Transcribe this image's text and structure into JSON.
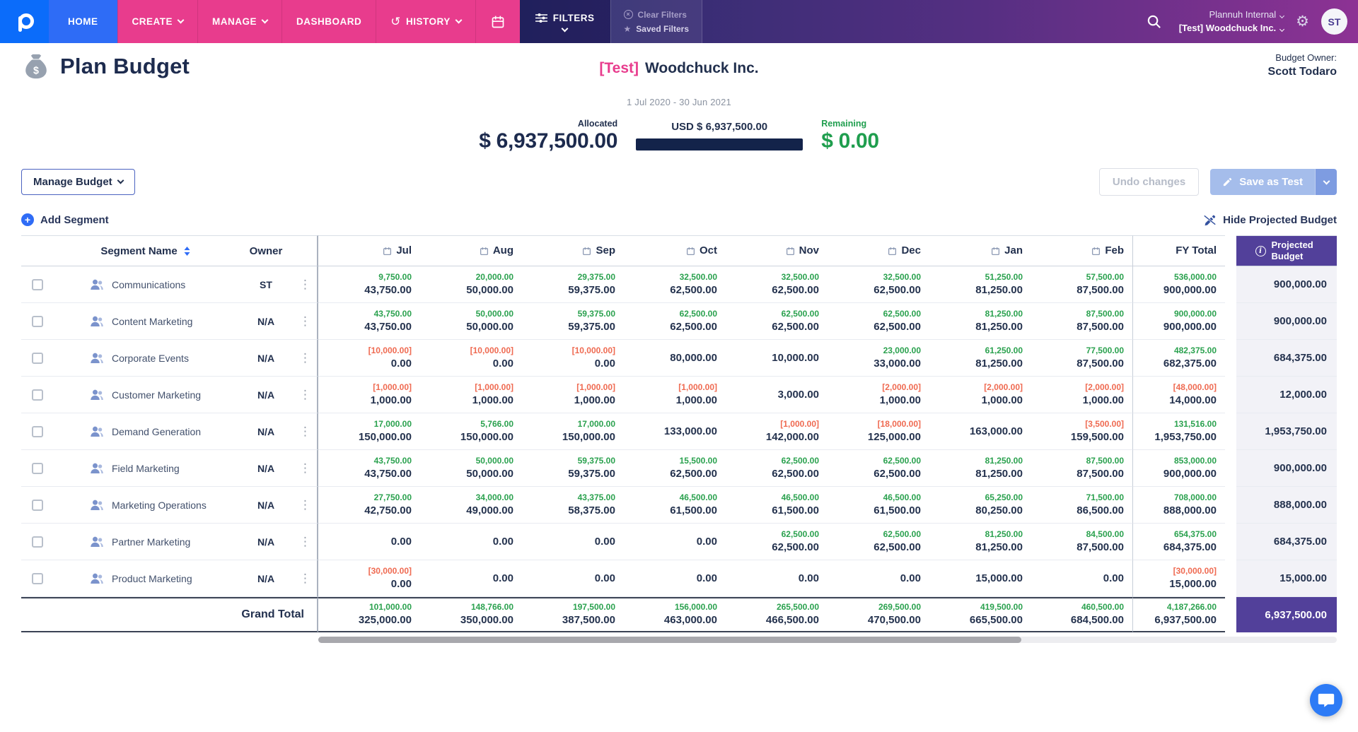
{
  "nav": {
    "home": "HOME",
    "create": "CREATE",
    "manage": "MANAGE",
    "dashboard": "DASHBOARD",
    "history": "HISTORY",
    "filters": "FILTERS",
    "clear_filters": "Clear Filters",
    "saved_filters": "Saved Filters",
    "org_primary": "Plannuh Internal",
    "org_secondary": "[Test] Woodchuck Inc.",
    "avatar_initials": "ST"
  },
  "header": {
    "page_title": "Plan Budget",
    "company_tag": "[Test]",
    "company_name": "Woodchuck Inc.",
    "budget_owner_label": "Budget Owner:",
    "budget_owner_name": "Scott Todaro",
    "date_range": "1 Jul 2020 - 30 Jun 2021",
    "allocated_label": "Allocated",
    "allocated_value": "$ 6,937,500.00",
    "usd_total_label": "USD $ 6,937,500.00",
    "remaining_label": "Remaining",
    "remaining_value": "$ 0.00"
  },
  "toolbar": {
    "manage_budget_label": "Manage Budget",
    "undo_label": "Undo changes",
    "save_label": "Save as Test",
    "add_segment_label": "Add Segment",
    "hide_projected_label": "Hide Projected Budget"
  },
  "table": {
    "segment_name_label": "Segment Name",
    "owner_label": "Owner",
    "months": [
      "Jul",
      "Aug",
      "Sep",
      "Oct",
      "Nov",
      "Dec",
      "Jan",
      "Feb"
    ],
    "fy_total_label": "FY Total",
    "projected_label": "Projected Budget",
    "grand_total_label": "Grand Total",
    "rows": [
      {
        "name": "Communications",
        "owner": "ST",
        "months": [
          {
            "delta": "9,750.00",
            "type": "pos",
            "value": "43,750.00"
          },
          {
            "delta": "20,000.00",
            "type": "pos",
            "value": "50,000.00"
          },
          {
            "delta": "29,375.00",
            "type": "pos",
            "value": "59,375.00"
          },
          {
            "delta": "32,500.00",
            "type": "pos",
            "value": "62,500.00"
          },
          {
            "delta": "32,500.00",
            "type": "pos",
            "value": "62,500.00"
          },
          {
            "delta": "32,500.00",
            "type": "pos",
            "value": "62,500.00"
          },
          {
            "delta": "51,250.00",
            "type": "pos",
            "value": "81,250.00"
          },
          {
            "delta": "57,500.00",
            "type": "pos",
            "value": "87,500.00"
          }
        ],
        "fy": {
          "delta": "536,000.00",
          "type": "pos",
          "value": "900,000.00"
        },
        "projected": "900,000.00"
      },
      {
        "name": "Content Marketing",
        "owner": "N/A",
        "months": [
          {
            "delta": "43,750.00",
            "type": "pos",
            "value": "43,750.00"
          },
          {
            "delta": "50,000.00",
            "type": "pos",
            "value": "50,000.00"
          },
          {
            "delta": "59,375.00",
            "type": "pos",
            "value": "59,375.00"
          },
          {
            "delta": "62,500.00",
            "type": "pos",
            "value": "62,500.00"
          },
          {
            "delta": "62,500.00",
            "type": "pos",
            "value": "62,500.00"
          },
          {
            "delta": "62,500.00",
            "type": "pos",
            "value": "62,500.00"
          },
          {
            "delta": "81,250.00",
            "type": "pos",
            "value": "81,250.00"
          },
          {
            "delta": "87,500.00",
            "type": "pos",
            "value": "87,500.00"
          }
        ],
        "fy": {
          "delta": "900,000.00",
          "type": "pos",
          "value": "900,000.00"
        },
        "projected": "900,000.00"
      },
      {
        "name": "Corporate Events",
        "owner": "N/A",
        "months": [
          {
            "delta": "[10,000.00]",
            "type": "neg",
            "value": "0.00"
          },
          {
            "delta": "[10,000.00]",
            "type": "neg",
            "value": "0.00"
          },
          {
            "delta": "[10,000.00]",
            "type": "neg",
            "value": "0.00"
          },
          {
            "value": "80,000.00"
          },
          {
            "value": "10,000.00"
          },
          {
            "delta": "23,000.00",
            "type": "pos",
            "value": "33,000.00"
          },
          {
            "delta": "61,250.00",
            "type": "pos",
            "value": "81,250.00"
          },
          {
            "delta": "77,500.00",
            "type": "pos",
            "value": "87,500.00"
          }
        ],
        "fy": {
          "delta": "482,375.00",
          "type": "pos",
          "value": "682,375.00"
        },
        "projected": "684,375.00"
      },
      {
        "name": "Customer Marketing",
        "owner": "N/A",
        "months": [
          {
            "delta": "[1,000.00]",
            "type": "neg",
            "value": "1,000.00"
          },
          {
            "delta": "[1,000.00]",
            "type": "neg",
            "value": "1,000.00"
          },
          {
            "delta": "[1,000.00]",
            "type": "neg",
            "value": "1,000.00"
          },
          {
            "delta": "[1,000.00]",
            "type": "neg",
            "value": "1,000.00"
          },
          {
            "value": "3,000.00"
          },
          {
            "delta": "[2,000.00]",
            "type": "neg",
            "value": "1,000.00"
          },
          {
            "delta": "[2,000.00]",
            "type": "neg",
            "value": "1,000.00"
          },
          {
            "delta": "[2,000.00]",
            "type": "neg",
            "value": "1,000.00"
          }
        ],
        "fy": {
          "delta": "[48,000.00]",
          "type": "neg",
          "value": "14,000.00"
        },
        "projected": "12,000.00"
      },
      {
        "name": "Demand Generation",
        "owner": "N/A",
        "months": [
          {
            "delta": "17,000.00",
            "type": "pos",
            "value": "150,000.00"
          },
          {
            "delta": "5,766.00",
            "type": "pos",
            "value": "150,000.00"
          },
          {
            "delta": "17,000.00",
            "type": "pos",
            "value": "150,000.00"
          },
          {
            "value": "133,000.00"
          },
          {
            "delta": "[1,000.00]",
            "type": "neg",
            "value": "142,000.00"
          },
          {
            "delta": "[18,000.00]",
            "type": "neg",
            "value": "125,000.00"
          },
          {
            "value": "163,000.00"
          },
          {
            "delta": "[3,500.00]",
            "type": "neg",
            "value": "159,500.00"
          }
        ],
        "fy": {
          "delta": "131,516.00",
          "type": "pos",
          "value": "1,953,750.00"
        },
        "projected": "1,953,750.00"
      },
      {
        "name": "Field Marketing",
        "owner": "N/A",
        "months": [
          {
            "delta": "43,750.00",
            "type": "pos",
            "value": "43,750.00"
          },
          {
            "delta": "50,000.00",
            "type": "pos",
            "value": "50,000.00"
          },
          {
            "delta": "59,375.00",
            "type": "pos",
            "value": "59,375.00"
          },
          {
            "delta": "15,500.00",
            "type": "pos",
            "value": "62,500.00"
          },
          {
            "delta": "62,500.00",
            "type": "pos",
            "value": "62,500.00"
          },
          {
            "delta": "62,500.00",
            "type": "pos",
            "value": "62,500.00"
          },
          {
            "delta": "81,250.00",
            "type": "pos",
            "value": "81,250.00"
          },
          {
            "delta": "87,500.00",
            "type": "pos",
            "value": "87,500.00"
          }
        ],
        "fy": {
          "delta": "853,000.00",
          "type": "pos",
          "value": "900,000.00"
        },
        "projected": "900,000.00"
      },
      {
        "name": "Marketing Operations",
        "owner": "N/A",
        "months": [
          {
            "delta": "27,750.00",
            "type": "pos",
            "value": "42,750.00"
          },
          {
            "delta": "34,000.00",
            "type": "pos",
            "value": "49,000.00"
          },
          {
            "delta": "43,375.00",
            "type": "pos",
            "value": "58,375.00"
          },
          {
            "delta": "46,500.00",
            "type": "pos",
            "value": "61,500.00"
          },
          {
            "delta": "46,500.00",
            "type": "pos",
            "value": "61,500.00"
          },
          {
            "delta": "46,500.00",
            "type": "pos",
            "value": "61,500.00"
          },
          {
            "delta": "65,250.00",
            "type": "pos",
            "value": "80,250.00"
          },
          {
            "delta": "71,500.00",
            "type": "pos",
            "value": "86,500.00"
          }
        ],
        "fy": {
          "delta": "708,000.00",
          "type": "pos",
          "value": "888,000.00"
        },
        "projected": "888,000.00"
      },
      {
        "name": "Partner Marketing",
        "owner": "N/A",
        "months": [
          {
            "value": "0.00"
          },
          {
            "value": "0.00"
          },
          {
            "value": "0.00"
          },
          {
            "value": "0.00"
          },
          {
            "delta": "62,500.00",
            "type": "pos",
            "value": "62,500.00"
          },
          {
            "delta": "62,500.00",
            "type": "pos",
            "value": "62,500.00"
          },
          {
            "delta": "81,250.00",
            "type": "pos",
            "value": "81,250.00"
          },
          {
            "delta": "84,500.00",
            "type": "pos",
            "value": "87,500.00"
          }
        ],
        "fy": {
          "delta": "654,375.00",
          "type": "pos",
          "value": "684,375.00"
        },
        "projected": "684,375.00"
      },
      {
        "name": "Product Marketing",
        "owner": "N/A",
        "months": [
          {
            "delta": "[30,000.00]",
            "type": "neg",
            "value": "0.00"
          },
          {
            "value": "0.00"
          },
          {
            "value": "0.00"
          },
          {
            "value": "0.00"
          },
          {
            "value": "0.00"
          },
          {
            "value": "0.00"
          },
          {
            "value": "15,000.00"
          },
          {
            "value": "0.00"
          }
        ],
        "fy": {
          "delta": "[30,000.00]",
          "type": "neg",
          "value": "15,000.00"
        },
        "projected": "15,000.00"
      }
    ],
    "grand_total": {
      "months": [
        {
          "delta": "101,000.00",
          "type": "pos",
          "value": "325,000.00"
        },
        {
          "delta": "148,766.00",
          "type": "pos",
          "value": "350,000.00"
        },
        {
          "delta": "197,500.00",
          "type": "pos",
          "value": "387,500.00"
        },
        {
          "delta": "156,000.00",
          "type": "pos",
          "value": "463,000.00"
        },
        {
          "delta": "265,500.00",
          "type": "pos",
          "value": "466,500.00"
        },
        {
          "delta": "269,500.00",
          "type": "pos",
          "value": "470,500.00"
        },
        {
          "delta": "419,500.00",
          "type": "pos",
          "value": "665,500.00"
        },
        {
          "delta": "460,500.00",
          "type": "pos",
          "value": "684,500.00"
        }
      ],
      "fy": {
        "delta": "4,187,266.00",
        "type": "pos",
        "value": "6,937,500.00"
      },
      "projected": "6,937,500.00"
    }
  },
  "colors": {
    "accent_blue": "#2f6cf6",
    "pink": "#e83c8d",
    "green": "#2aa14e",
    "red": "#ef6a51",
    "purple": "#52409a",
    "navy": "#22304e",
    "progress_bar": "#13234a"
  }
}
